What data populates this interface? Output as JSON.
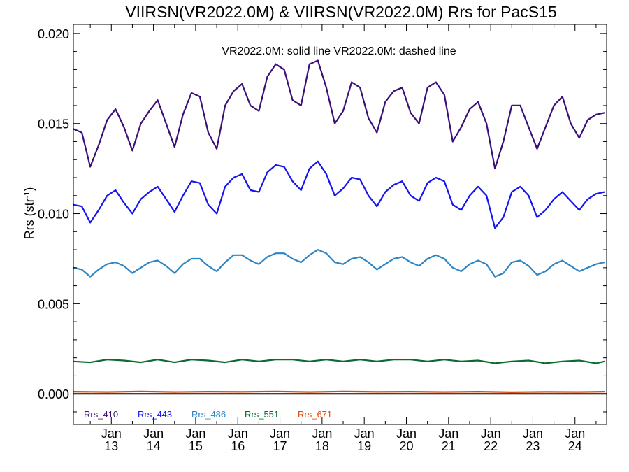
{
  "chart_data": {
    "type": "line",
    "title": "VIIRSN(VR2022.0M) & VIIRSN(VR2022.0M)  Rrs for PacS15",
    "annotation": "VR2022.0M: solid line   VR2022.0M: dashed line",
    "ylabel_main": "Rrs (str",
    "ylabel_sup": "-1",
    "ylabel_close": ")",
    "ylim": [
      -0.0017,
      0.0205
    ],
    "xlim": [
      12.1,
      24.75
    ],
    "yticks": [
      0.0,
      0.005,
      0.01,
      0.015,
      0.02
    ],
    "ytick_labels": [
      "0.000",
      "0.005",
      "0.010",
      "0.015",
      "0.020"
    ],
    "xticks": [
      13,
      14,
      15,
      16,
      17,
      18,
      19,
      20,
      21,
      22,
      23,
      24
    ],
    "xtick_month": "Jan",
    "xtick_labels": [
      "13",
      "14",
      "15",
      "16",
      "17",
      "18",
      "19",
      "20",
      "21",
      "22",
      "23",
      "24"
    ],
    "zero_line": true,
    "grid": false,
    "legend_placement": "bottom-left inside",
    "series": [
      {
        "name": "Rrs_410",
        "color": "#3b0f7a",
        "x": [
          12.1,
          12.3,
          12.5,
          12.7,
          12.9,
          13.1,
          13.3,
          13.5,
          13.7,
          13.9,
          14.1,
          14.3,
          14.5,
          14.7,
          14.9,
          15.1,
          15.3,
          15.5,
          15.7,
          15.9,
          16.1,
          16.3,
          16.5,
          16.7,
          16.9,
          17.1,
          17.3,
          17.5,
          17.7,
          17.9,
          18.1,
          18.3,
          18.5,
          18.7,
          18.9,
          19.1,
          19.3,
          19.5,
          19.7,
          19.9,
          20.1,
          20.3,
          20.5,
          20.7,
          20.9,
          21.1,
          21.3,
          21.5,
          21.7,
          21.9,
          22.1,
          22.3,
          22.5,
          22.7,
          22.9,
          23.1,
          23.3,
          23.5,
          23.7,
          23.9,
          24.1,
          24.3,
          24.5,
          24.7
        ],
        "values": [
          0.0147,
          0.0145,
          0.0126,
          0.0138,
          0.0152,
          0.0158,
          0.0148,
          0.0135,
          0.015,
          0.0157,
          0.0163,
          0.015,
          0.0137,
          0.0155,
          0.0167,
          0.0165,
          0.0145,
          0.0136,
          0.016,
          0.0168,
          0.0172,
          0.016,
          0.0157,
          0.0176,
          0.0183,
          0.018,
          0.0163,
          0.016,
          0.0183,
          0.0185,
          0.017,
          0.015,
          0.0157,
          0.0173,
          0.017,
          0.0153,
          0.0145,
          0.0162,
          0.0168,
          0.017,
          0.0156,
          0.015,
          0.017,
          0.0173,
          0.0166,
          0.014,
          0.0148,
          0.0158,
          0.0162,
          0.015,
          0.0125,
          0.014,
          0.016,
          0.016,
          0.0148,
          0.0136,
          0.0148,
          0.016,
          0.0165,
          0.015,
          0.0142,
          0.0152,
          0.0155,
          0.0156
        ]
      },
      {
        "name": "Rrs_443",
        "color": "#1414f0",
        "x": [
          12.1,
          12.3,
          12.5,
          12.7,
          12.9,
          13.1,
          13.3,
          13.5,
          13.7,
          13.9,
          14.1,
          14.3,
          14.5,
          14.7,
          14.9,
          15.1,
          15.3,
          15.5,
          15.7,
          15.9,
          16.1,
          16.3,
          16.5,
          16.7,
          16.9,
          17.1,
          17.3,
          17.5,
          17.7,
          17.9,
          18.1,
          18.3,
          18.5,
          18.7,
          18.9,
          19.1,
          19.3,
          19.5,
          19.7,
          19.9,
          20.1,
          20.3,
          20.5,
          20.7,
          20.9,
          21.1,
          21.3,
          21.5,
          21.7,
          21.9,
          22.1,
          22.3,
          22.5,
          22.7,
          22.9,
          23.1,
          23.3,
          23.5,
          23.7,
          23.9,
          24.1,
          24.3,
          24.5,
          24.7
        ],
        "values": [
          0.0105,
          0.0104,
          0.0095,
          0.0102,
          0.011,
          0.0113,
          0.0106,
          0.01,
          0.0108,
          0.0112,
          0.0115,
          0.0108,
          0.0101,
          0.011,
          0.0118,
          0.0117,
          0.0105,
          0.01,
          0.0115,
          0.012,
          0.0122,
          0.0113,
          0.0112,
          0.0123,
          0.0127,
          0.0126,
          0.0118,
          0.0113,
          0.0125,
          0.0129,
          0.0122,
          0.011,
          0.0114,
          0.012,
          0.0119,
          0.011,
          0.0104,
          0.0112,
          0.0116,
          0.0118,
          0.011,
          0.0107,
          0.0117,
          0.012,
          0.0118,
          0.0105,
          0.0102,
          0.011,
          0.0115,
          0.011,
          0.0092,
          0.0098,
          0.0112,
          0.0115,
          0.011,
          0.0098,
          0.0102,
          0.0108,
          0.0112,
          0.0107,
          0.0102,
          0.0108,
          0.0111,
          0.0112
        ]
      },
      {
        "name": "Rrs_486",
        "color": "#2b85c4",
        "x": [
          12.1,
          12.3,
          12.5,
          12.7,
          12.9,
          13.1,
          13.3,
          13.5,
          13.7,
          13.9,
          14.1,
          14.3,
          14.5,
          14.7,
          14.9,
          15.1,
          15.3,
          15.5,
          15.7,
          15.9,
          16.1,
          16.3,
          16.5,
          16.7,
          16.9,
          17.1,
          17.3,
          17.5,
          17.7,
          17.9,
          18.1,
          18.3,
          18.5,
          18.7,
          18.9,
          19.1,
          19.3,
          19.5,
          19.7,
          19.9,
          20.1,
          20.3,
          20.5,
          20.7,
          20.9,
          21.1,
          21.3,
          21.5,
          21.7,
          21.9,
          22.1,
          22.3,
          22.5,
          22.7,
          22.9,
          23.1,
          23.3,
          23.5,
          23.7,
          23.9,
          24.1,
          24.3,
          24.5,
          24.7
        ],
        "values": [
          0.007,
          0.0069,
          0.0065,
          0.0069,
          0.0072,
          0.0073,
          0.0071,
          0.0067,
          0.007,
          0.0073,
          0.0074,
          0.0071,
          0.0067,
          0.0072,
          0.0075,
          0.0075,
          0.0071,
          0.0068,
          0.0073,
          0.0077,
          0.0077,
          0.0074,
          0.0072,
          0.0076,
          0.0078,
          0.0078,
          0.0075,
          0.0073,
          0.0077,
          0.008,
          0.0078,
          0.0073,
          0.0072,
          0.0075,
          0.0076,
          0.0073,
          0.0069,
          0.0072,
          0.0075,
          0.0076,
          0.0073,
          0.0071,
          0.0075,
          0.0077,
          0.0075,
          0.007,
          0.0068,
          0.0072,
          0.0074,
          0.0072,
          0.0065,
          0.0067,
          0.0073,
          0.0074,
          0.0071,
          0.0066,
          0.0068,
          0.0072,
          0.0074,
          0.0071,
          0.0068,
          0.007,
          0.0072,
          0.0073
        ]
      },
      {
        "name": "Rrs_551",
        "color": "#0a6b2e",
        "x": [
          12.1,
          12.5,
          12.9,
          13.3,
          13.7,
          14.1,
          14.5,
          14.9,
          15.3,
          15.7,
          16.1,
          16.5,
          16.9,
          17.3,
          17.7,
          18.1,
          18.5,
          18.9,
          19.3,
          19.7,
          20.1,
          20.5,
          20.9,
          21.3,
          21.7,
          22.1,
          22.5,
          22.9,
          23.3,
          23.7,
          24.1,
          24.5,
          24.7
        ],
        "values": [
          0.0018,
          0.00175,
          0.0019,
          0.00185,
          0.00175,
          0.0019,
          0.00175,
          0.0019,
          0.00185,
          0.00175,
          0.0019,
          0.0018,
          0.0019,
          0.0019,
          0.0018,
          0.0019,
          0.0018,
          0.0019,
          0.0018,
          0.0019,
          0.0019,
          0.0018,
          0.0019,
          0.0018,
          0.00185,
          0.0017,
          0.0018,
          0.00185,
          0.0017,
          0.0018,
          0.00185,
          0.0017,
          0.0018
        ]
      },
      {
        "name": "Rrs_671",
        "color": "#d9480f",
        "x": [
          12.1,
          12.9,
          13.7,
          14.5,
          15.3,
          16.1,
          16.9,
          17.7,
          18.5,
          19.3,
          20.1,
          20.9,
          21.7,
          22.5,
          23.3,
          24.1,
          24.7
        ],
        "values": [
          0.00012,
          0.0001,
          0.00013,
          0.0001,
          0.00012,
          0.00011,
          0.00013,
          0.0001,
          0.00013,
          0.00011,
          0.00012,
          0.0001,
          0.00012,
          9e-05,
          0.00011,
          0.0001,
          0.00012
        ]
      }
    ]
  }
}
